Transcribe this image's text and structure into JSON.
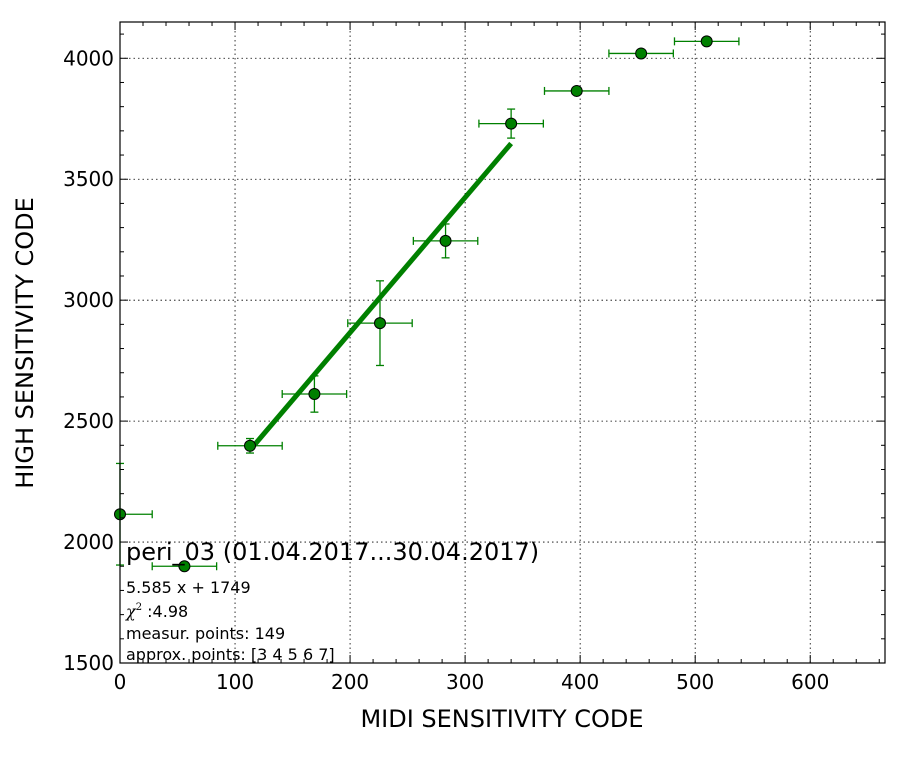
{
  "chart_data": {
    "type": "scatter",
    "xlabel": "MIDI SENSITIVITY CODE",
    "ylabel": "HIGH SENSITIVITY CODE",
    "xlim": [
      0,
      665
    ],
    "ylim": [
      1500,
      4150
    ],
    "xticks": [
      0,
      100,
      200,
      300,
      400,
      500,
      600
    ],
    "yticks": [
      1500,
      2000,
      2500,
      3000,
      3500,
      4000
    ],
    "xticklabels": [
      "0",
      "100",
      "200",
      "300",
      "400",
      "500",
      "600"
    ],
    "yticklabels": [
      "1500",
      "2000",
      "2500",
      "3000",
      "3500",
      "4000"
    ],
    "grid": true,
    "marker_color": "#008000",
    "points": [
      {
        "x": 0,
        "y": 2115,
        "xerr": 28,
        "yerr": 210
      },
      {
        "x": 56,
        "y": 1900,
        "xerr": 28,
        "yerr": 10
      },
      {
        "x": 113,
        "y": 2398,
        "xerr": 28,
        "yerr": 30
      },
      {
        "x": 169,
        "y": 2612,
        "xerr": 28,
        "yerr": 75
      },
      {
        "x": 226,
        "y": 2905,
        "xerr": 28,
        "yerr": 175
      },
      {
        "x": 283,
        "y": 3245,
        "xerr": 28,
        "yerr": 70
      },
      {
        "x": 340,
        "y": 3730,
        "xerr": 28,
        "yerr": 60
      },
      {
        "x": 397,
        "y": 3865,
        "xerr": 28,
        "yerr": 10
      },
      {
        "x": 453,
        "y": 4020,
        "xerr": 28,
        "yerr": 10
      },
      {
        "x": 510,
        "y": 4070,
        "xerr": 28,
        "yerr": 10
      }
    ],
    "fit": {
      "slope": 5.585,
      "intercept": 1749,
      "x_range": [
        113,
        340
      ],
      "color": "#008000"
    },
    "annotation": {
      "title": "peri_03 (01.04.2017...30.04.2017)",
      "equation": "5.585 x + 1749",
      "chi_symbol": "χ",
      "chi_power": "2",
      "chi_value": " :4.98",
      "measur_points": "measur. points: 149",
      "approx_points": "approx. points: [3 4 5 6 7]"
    }
  }
}
